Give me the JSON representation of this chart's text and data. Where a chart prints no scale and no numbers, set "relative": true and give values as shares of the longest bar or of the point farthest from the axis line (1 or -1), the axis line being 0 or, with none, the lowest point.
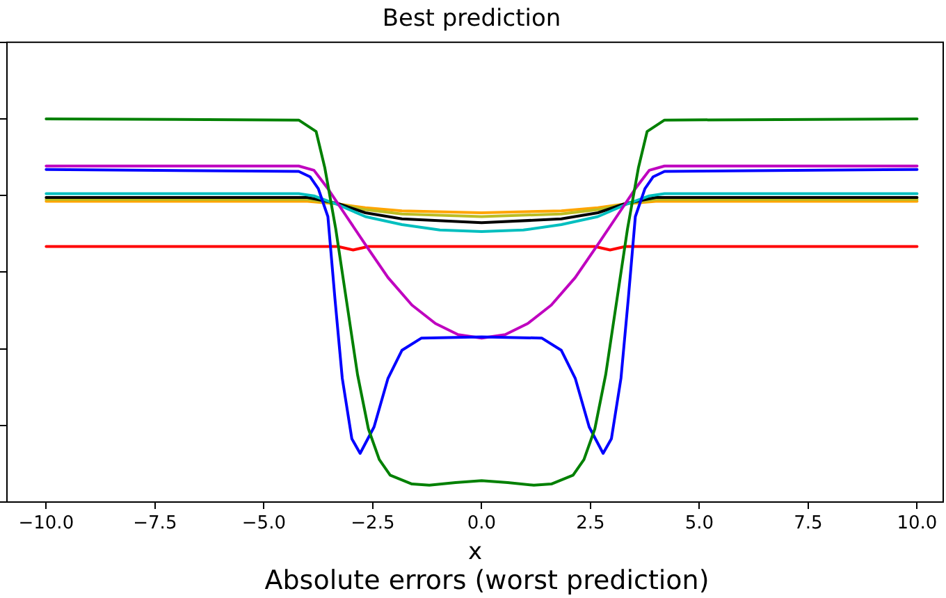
{
  "chart_data": {
    "type": "line",
    "title": "Best prediction",
    "xlabel": "x",
    "relative": true,
    "marker": "none",
    "line_style": "solid",
    "legend": false,
    "xlim": [
      -10.9,
      10.6
    ],
    "xticks": [
      {
        "value": -10,
        "label": "−10.0"
      },
      {
        "value": -7.5,
        "label": "−7.5"
      },
      {
        "value": -5,
        "label": "−5.0"
      },
      {
        "value": -2.5,
        "label": "−2.5"
      },
      {
        "value": 0,
        "label": "0.0"
      },
      {
        "value": 2.5,
        "label": "2.5"
      },
      {
        "value": 5,
        "label": "5.0"
      },
      {
        "value": 7.5,
        "label": "7.5"
      },
      {
        "value": 10,
        "label": "10.0"
      }
    ],
    "annotations": [
      "Absolute errors (worst prediction)"
    ],
    "series": [
      {
        "color": "#008000",
        "x": [
          -10,
          -4.2,
          -3.8,
          -3.6,
          -3.35,
          -3.1,
          -2.85,
          -2.6,
          -2.35,
          -2.1,
          -1.6,
          -1.2,
          -0.6,
          0,
          0.6,
          1.2,
          1.6,
          2.1,
          2.35,
          2.6,
          2.85,
          3.1,
          3.35,
          3.6,
          3.8,
          4.2,
          10
        ],
        "values": [
          1,
          0.997,
          0.967,
          0.872,
          0.713,
          0.523,
          0.333,
          0.191,
          0.111,
          0.07,
          0.047,
          0.044,
          0.051,
          0.056,
          0.051,
          0.044,
          0.047,
          0.07,
          0.111,
          0.191,
          0.333,
          0.523,
          0.713,
          0.872,
          0.967,
          0.997,
          1
        ]
      },
      {
        "color": "#0000ff",
        "x": [
          -10,
          -4.2,
          -3.94,
          -3.75,
          -3.53,
          -3.37,
          -3.2,
          -2.98,
          -2.79,
          -2.47,
          -2.15,
          -1.83,
          -1.38,
          0,
          1.38,
          1.83,
          2.15,
          2.47,
          2.79,
          2.98,
          3.2,
          3.37,
          3.53,
          3.75,
          3.94,
          4.2,
          10
        ],
        "values": [
          0.868,
          0.863,
          0.849,
          0.818,
          0.745,
          0.533,
          0.323,
          0.165,
          0.127,
          0.196,
          0.323,
          0.396,
          0.428,
          0.431,
          0.428,
          0.396,
          0.323,
          0.196,
          0.127,
          0.165,
          0.323,
          0.533,
          0.745,
          0.818,
          0.849,
          0.863,
          0.868
        ]
      },
      {
        "color": "#bf00bf",
        "x": [
          -10,
          -4.2,
          -3.85,
          -3.53,
          -3.1,
          -2.67,
          -2.15,
          -1.6,
          -1.06,
          -0.54,
          0,
          0.54,
          1.06,
          1.6,
          2.15,
          2.67,
          3.1,
          3.53,
          3.85,
          4.2,
          10
        ],
        "values": [
          0.877,
          0.877,
          0.866,
          0.818,
          0.745,
          0.672,
          0.586,
          0.514,
          0.466,
          0.437,
          0.428,
          0.437,
          0.466,
          0.514,
          0.586,
          0.672,
          0.745,
          0.818,
          0.866,
          0.877,
          0.877
        ]
      },
      {
        "color": "#00bfbf",
        "x": [
          -10,
          -4.2,
          -3.85,
          -3.3,
          -2.67,
          -1.83,
          -0.96,
          0,
          0.96,
          1.83,
          2.67,
          3.3,
          3.85,
          4.2,
          10
        ],
        "values": [
          0.805,
          0.805,
          0.799,
          0.776,
          0.745,
          0.724,
          0.71,
          0.706,
          0.71,
          0.724,
          0.745,
          0.776,
          0.799,
          0.805,
          0.805
        ]
      },
      {
        "color": "#000000",
        "x": [
          -10,
          -4.0,
          -3.3,
          -2.67,
          -1.83,
          0,
          1.83,
          2.67,
          3.3,
          4.0,
          10
        ],
        "values": [
          0.795,
          0.795,
          0.779,
          0.755,
          0.739,
          0.729,
          0.739,
          0.755,
          0.779,
          0.795,
          0.795
        ]
      },
      {
        "color": "#bcbd22",
        "x": [
          -10,
          -4.0,
          -3.3,
          -2.67,
          -1.83,
          0,
          1.83,
          2.67,
          3.3,
          4.0,
          10
        ],
        "values": [
          0.79,
          0.79,
          0.778,
          0.763,
          0.752,
          0.745,
          0.752,
          0.763,
          0.778,
          0.79,
          0.79
        ]
      },
      {
        "color": "#ffa500",
        "x": [
          -10,
          -4.0,
          -3.3,
          -2.67,
          -1.83,
          0,
          1.83,
          2.67,
          3.3,
          4.0,
          10
        ],
        "values": [
          0.785,
          0.785,
          0.778,
          0.768,
          0.76,
          0.755,
          0.76,
          0.768,
          0.778,
          0.785,
          0.785
        ]
      },
      {
        "color": "#ff0000",
        "x": [
          -10,
          -3.3,
          -2.95,
          -2.6,
          2.6,
          2.95,
          3.3,
          10
        ],
        "values": [
          0.667,
          0.667,
          0.658,
          0.667,
          0.667,
          0.658,
          0.667,
          0.667
        ]
      }
    ]
  }
}
